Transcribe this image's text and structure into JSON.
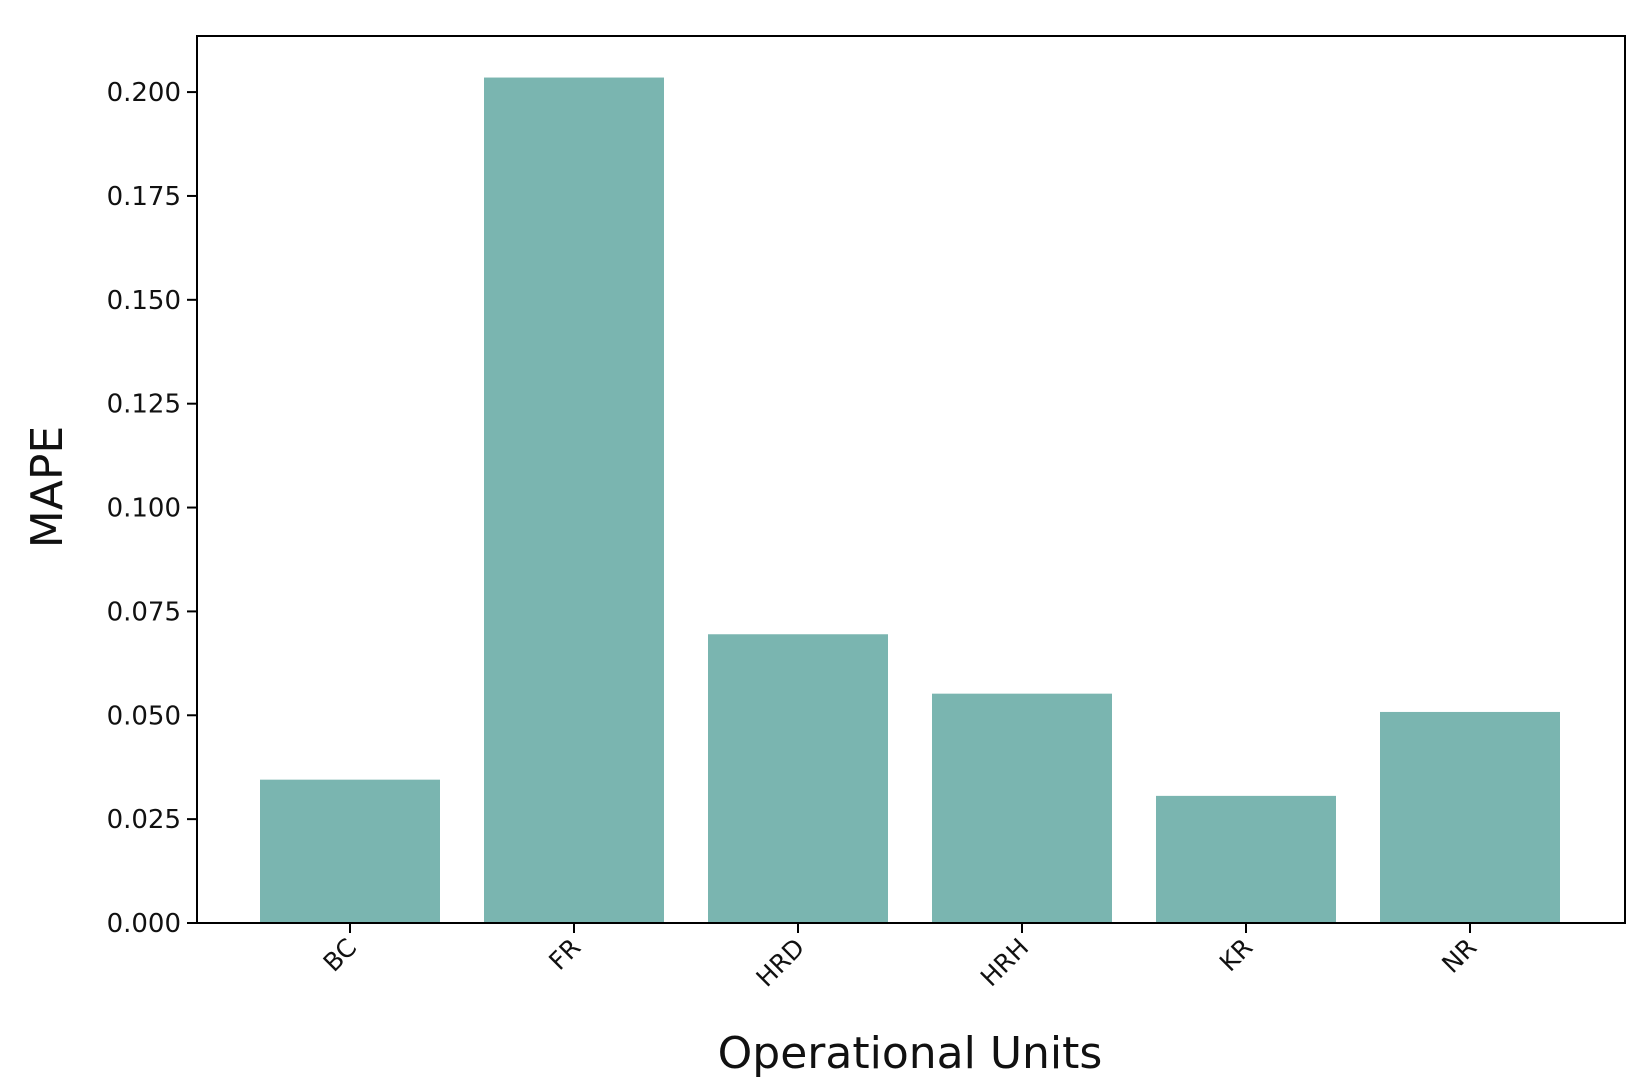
{
  "chart_data": {
    "type": "bar",
    "categories": [
      "BC",
      "FR",
      "HRD",
      "HRH",
      "KR",
      "NR"
    ],
    "values": [
      0.0345,
      0.2035,
      0.0695,
      0.0552,
      0.0306,
      0.0508
    ],
    "title": "",
    "xlabel": "Operational Units",
    "ylabel": "MAPE",
    "ylim": [
      0,
      0.2135
    ],
    "yticks": [
      0.0,
      0.025,
      0.05,
      0.075,
      0.1,
      0.125,
      0.15,
      0.175,
      0.2
    ],
    "ytick_labels": [
      "0.000",
      "0.025",
      "0.050",
      "0.075",
      "0.100",
      "0.125",
      "0.150",
      "0.175",
      "0.200"
    ],
    "grid": false,
    "legend": "none",
    "bar_color": "#7ab5b0"
  }
}
